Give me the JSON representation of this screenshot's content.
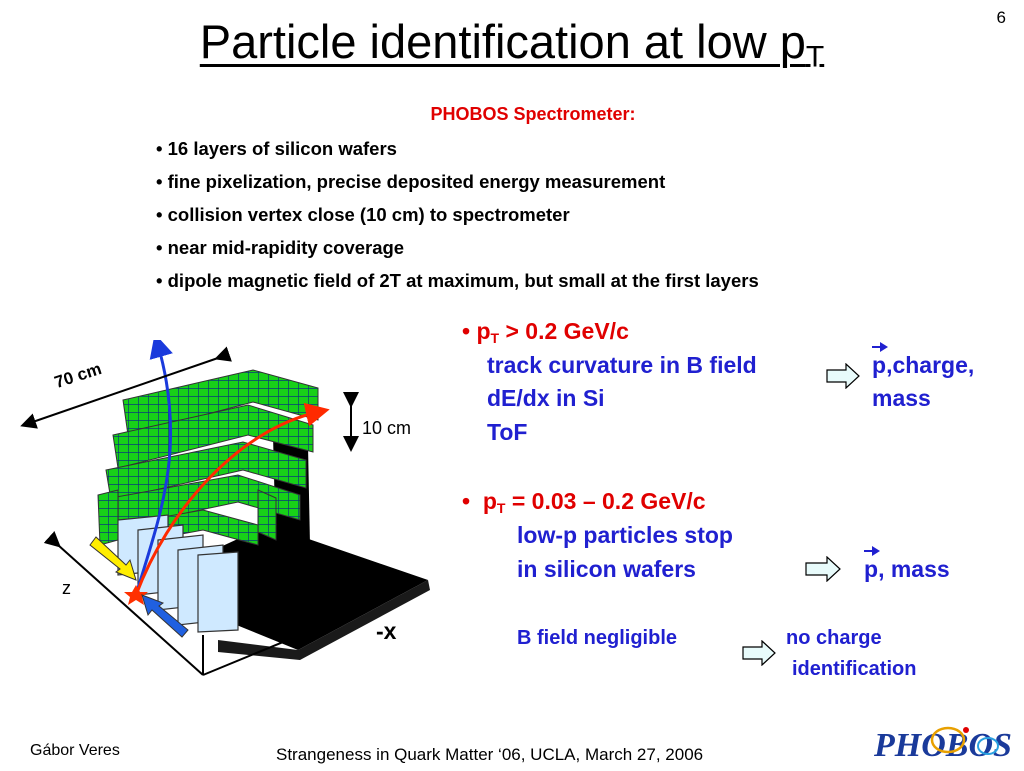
{
  "slide_number": "6",
  "title": {
    "main": "Particle identification at low p",
    "subscript": "T"
  },
  "spectrometer": {
    "heading": "PHOBOS Spectrometer:",
    "features": [
      "16 layers of silicon wafers",
      "fine pixelization, precise deposited energy measurement",
      "collision vertex close (10 cm) to spectrometer",
      "near mid-rapidity coverage",
      "dipole magnetic field of 2T at maximum, but small at the first layers"
    ]
  },
  "figure": {
    "dim_70cm": "70 cm",
    "dim_10cm": "10 cm",
    "axis_z": "z",
    "axis_x": "-x"
  },
  "pid": {
    "high": {
      "bullet": "•",
      "p": "p",
      "sub": "T",
      "range": " > 0.2 GeV/c",
      "line1": "track curvature in B field",
      "line2": "dE/dx in Si",
      "line3": "ToF",
      "result_p": "p",
      "result_rest": ",charge,",
      "result_mass": "mass"
    },
    "low": {
      "bullet": "•",
      "p": "p",
      "sub": "T",
      "range": " = 0.03 – 0.2 GeV/c",
      "line1": "low-p particles stop",
      "line2": "in silicon wafers",
      "result_p": "p",
      "result_rest": ", mass",
      "note_left": "B field negligible",
      "note_right1": "no charge",
      "note_right2": "identification"
    }
  },
  "footer": {
    "author": "Gábor Veres",
    "conference": "Strangeness in Quark Matter ‘06, UCLA, March 27, 2006",
    "logo_text": "PHOBOS"
  },
  "colors": {
    "heading_red": "#e00000",
    "text_blue": "#2020d0",
    "arrow_fill": "#e8fbfb"
  }
}
